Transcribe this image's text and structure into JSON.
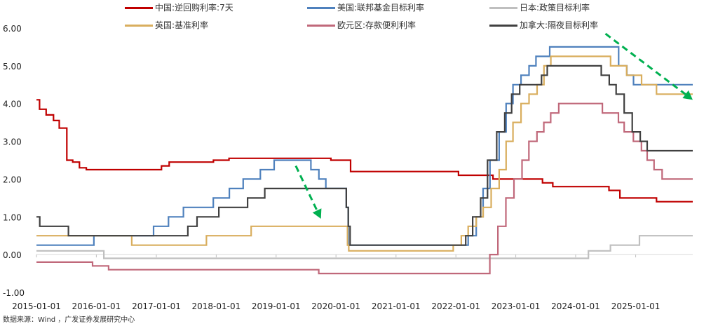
{
  "chart_data": {
    "type": "line",
    "y_ticks": [
      "6.00",
      "5.00",
      "4.00",
      "3.00",
      "2.00",
      "1.00",
      "0.00",
      "-1.00"
    ],
    "ylim": [
      -1,
      6
    ],
    "x_ticks": [
      "2015-01-01",
      "2016-01-01",
      "2017-01-01",
      "2018-01-01",
      "2019-01-01",
      "2020-01-01",
      "2021-01-01",
      "2022-01-01",
      "2023-01-01",
      "2024-01-01",
      "2025-01-01"
    ],
    "xlim": [
      "2015-01-01",
      "2025-12-15"
    ],
    "series": [
      {
        "name": "中国:逆回购利率:7天",
        "color": "#c00000",
        "points": [
          [
            "2015-01-01",
            4.1
          ],
          [
            "2015-01-20",
            3.85
          ],
          [
            "2015-03-01",
            3.7
          ],
          [
            "2015-04-15",
            3.55
          ],
          [
            "2015-05-20",
            3.35
          ],
          [
            "2015-06-30",
            3.35
          ],
          [
            "2015-07-05",
            2.5
          ],
          [
            "2015-08-10",
            2.45
          ],
          [
            "2015-09-20",
            2.3
          ],
          [
            "2015-11-01",
            2.25
          ],
          [
            "2016-12-01",
            2.25
          ],
          [
            "2017-02-01",
            2.35
          ],
          [
            "2017-03-20",
            2.45
          ],
          [
            "2017-12-15",
            2.5
          ],
          [
            "2018-03-20",
            2.55
          ],
          [
            "2019-12-01",
            2.5
          ],
          [
            "2020-03-30",
            2.2
          ],
          [
            "2022-01-17",
            2.1
          ],
          [
            "2022-08-15",
            2.0
          ],
          [
            "2023-06-13",
            1.9
          ],
          [
            "2023-08-15",
            1.8
          ],
          [
            "2024-07-22",
            1.7
          ],
          [
            "2024-09-27",
            1.5
          ],
          [
            "2025-05-08",
            1.4
          ],
          [
            "2025-12-15",
            1.4
          ]
        ]
      },
      {
        "name": "美国:联邦基金目标利率",
        "color": "#4f81bd",
        "points": [
          [
            "2015-01-01",
            0.25
          ],
          [
            "2015-12-17",
            0.5
          ],
          [
            "2016-12-15",
            0.75
          ],
          [
            "2017-03-16",
            1.0
          ],
          [
            "2017-06-15",
            1.25
          ],
          [
            "2017-12-14",
            1.5
          ],
          [
            "2018-03-22",
            1.75
          ],
          [
            "2018-06-14",
            2.0
          ],
          [
            "2018-09-27",
            2.25
          ],
          [
            "2018-12-20",
            2.5
          ],
          [
            "2019-08-01",
            2.25
          ],
          [
            "2019-09-19",
            2.0
          ],
          [
            "2019-10-31",
            1.75
          ],
          [
            "2020-03-04",
            1.25
          ],
          [
            "2020-03-16",
            0.25
          ],
          [
            "2022-03-17",
            0.5
          ],
          [
            "2022-05-05",
            1.0
          ],
          [
            "2022-06-16",
            1.75
          ],
          [
            "2022-07-28",
            2.5
          ],
          [
            "2022-09-22",
            3.25
          ],
          [
            "2022-11-03",
            4.0
          ],
          [
            "2022-12-15",
            4.5
          ],
          [
            "2023-02-02",
            4.75
          ],
          [
            "2023-03-23",
            5.0
          ],
          [
            "2023-05-04",
            5.25
          ],
          [
            "2023-07-27",
            5.5
          ],
          [
            "2024-09-19",
            5.0
          ],
          [
            "2024-11-08",
            4.75
          ],
          [
            "2024-12-19",
            4.5
          ],
          [
            "2025-12-15",
            4.5
          ]
        ]
      },
      {
        "name": "日本:政策目标利率",
        "color": "#bfbfbf",
        "points": [
          [
            "2015-01-01",
            0.1
          ],
          [
            "2016-02-16",
            -0.1
          ],
          [
            "2024-03-19",
            0.1
          ],
          [
            "2024-07-31",
            0.25
          ],
          [
            "2025-01-24",
            0.5
          ],
          [
            "2025-12-15",
            0.5
          ]
        ]
      },
      {
        "name": "英国:基准利率",
        "color": "#d9ae5e",
        "points": [
          [
            "2015-01-01",
            0.5
          ],
          [
            "2016-08-04",
            0.25
          ],
          [
            "2017-11-02",
            0.5
          ],
          [
            "2018-08-02",
            0.75
          ],
          [
            "2020-03-11",
            0.25
          ],
          [
            "2020-03-19",
            0.1
          ],
          [
            "2021-12-16",
            0.25
          ],
          [
            "2022-02-03",
            0.5
          ],
          [
            "2022-03-17",
            0.75
          ],
          [
            "2022-05-05",
            1.0
          ],
          [
            "2022-06-16",
            1.25
          ],
          [
            "2022-08-04",
            1.75
          ],
          [
            "2022-09-22",
            2.25
          ],
          [
            "2022-11-03",
            3.0
          ],
          [
            "2022-12-15",
            3.5
          ],
          [
            "2023-02-02",
            4.0
          ],
          [
            "2023-03-23",
            4.25
          ],
          [
            "2023-05-11",
            4.5
          ],
          [
            "2023-06-22",
            5.0
          ],
          [
            "2023-08-03",
            5.25
          ],
          [
            "2024-08-01",
            5.0
          ],
          [
            "2024-11-07",
            4.75
          ],
          [
            "2025-02-06",
            4.5
          ],
          [
            "2025-05-08",
            4.25
          ],
          [
            "2025-12-15",
            4.25
          ]
        ]
      },
      {
        "name": "欧元区:存款便利利率",
        "color": "#c0687a",
        "points": [
          [
            "2015-01-01",
            -0.2
          ],
          [
            "2015-12-09",
            -0.3
          ],
          [
            "2016-03-16",
            -0.4
          ],
          [
            "2019-09-18",
            -0.5
          ],
          [
            "2022-07-27",
            0.0
          ],
          [
            "2022-09-14",
            0.75
          ],
          [
            "2022-11-02",
            1.5
          ],
          [
            "2022-12-21",
            2.0
          ],
          [
            "2023-02-08",
            2.5
          ],
          [
            "2023-03-22",
            3.0
          ],
          [
            "2023-05-10",
            3.25
          ],
          [
            "2023-06-21",
            3.5
          ],
          [
            "2023-08-02",
            3.75
          ],
          [
            "2023-09-20",
            4.0
          ],
          [
            "2024-06-12",
            3.75
          ],
          [
            "2024-09-18",
            3.5
          ],
          [
            "2024-10-23",
            3.25
          ],
          [
            "2024-12-18",
            3.0
          ],
          [
            "2025-02-05",
            2.75
          ],
          [
            "2025-03-12",
            2.5
          ],
          [
            "2025-04-23",
            2.25
          ],
          [
            "2025-06-11",
            2.0
          ],
          [
            "2025-12-15",
            2.0
          ]
        ]
      },
      {
        "name": "加拿大:隔夜目标利率",
        "color": "#404040",
        "points": [
          [
            "2015-01-01",
            1.0
          ],
          [
            "2015-01-21",
            0.75
          ],
          [
            "2015-07-15",
            0.5
          ],
          [
            "2017-07-12",
            0.75
          ],
          [
            "2017-09-06",
            1.0
          ],
          [
            "2018-01-17",
            1.25
          ],
          [
            "2018-07-11",
            1.5
          ],
          [
            "2018-10-24",
            1.75
          ],
          [
            "2020-03-04",
            1.25
          ],
          [
            "2020-03-16",
            0.75
          ],
          [
            "2020-03-27",
            0.25
          ],
          [
            "2022-03-02",
            0.5
          ],
          [
            "2022-04-13",
            1.0
          ],
          [
            "2022-06-01",
            1.5
          ],
          [
            "2022-07-13",
            2.5
          ],
          [
            "2022-09-07",
            3.25
          ],
          [
            "2022-10-26",
            3.75
          ],
          [
            "2022-12-07",
            4.25
          ],
          [
            "2023-01-25",
            4.5
          ],
          [
            "2023-06-07",
            4.75
          ],
          [
            "2023-07-12",
            5.0
          ],
          [
            "2024-06-05",
            4.75
          ],
          [
            "2024-07-24",
            4.5
          ],
          [
            "2024-09-04",
            4.25
          ],
          [
            "2024-10-23",
            3.75
          ],
          [
            "2024-12-11",
            3.25
          ],
          [
            "2025-01-29",
            3.0
          ],
          [
            "2025-03-12",
            2.75
          ],
          [
            "2025-12-15",
            2.75
          ]
        ]
      }
    ],
    "annotations": [
      {
        "type": "arrow",
        "style": "dashed",
        "color": "#00b050",
        "from": [
          "2019-05-01",
          2.35
        ],
        "to": [
          "2019-10-01",
          0.95
        ]
      },
      {
        "type": "arrow",
        "style": "dashed",
        "color": "#00b050",
        "from": [
          "2024-07-01",
          5.85
        ],
        "to": [
          "2025-12-15",
          4.1
        ]
      }
    ],
    "legend_position": "top"
  },
  "source": "数据来源：Wind ，广发证券发展研究中心"
}
